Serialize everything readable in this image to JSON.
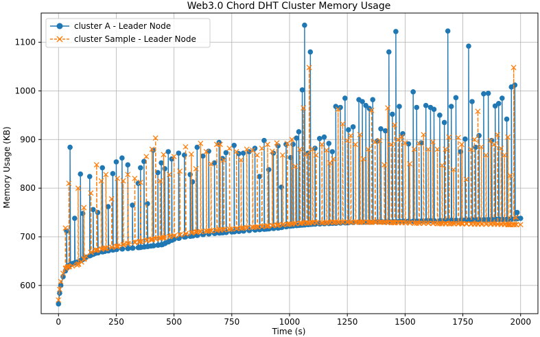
{
  "chart_data": {
    "type": "line",
    "title": "Web3.0 Chord DHT Cluster Memory Usage",
    "xlabel": "Time (s)",
    "ylabel": "Memory Usage (KB)",
    "xlim": [
      -75,
      2075
    ],
    "ylim": [
      542,
      1160
    ],
    "xticks": [
      0,
      250,
      500,
      750,
      1000,
      1250,
      1500,
      1750,
      2000
    ],
    "yticks": [
      600,
      700,
      800,
      900,
      1000,
      1100
    ],
    "grid": true,
    "legend_position": "top-left",
    "series": [
      {
        "name": "cluster A - Leader Node",
        "color": "#1f77b4",
        "marker": "circle",
        "line_style": "solid",
        "base_values": [
          [
            0,
            562
          ],
          [
            5,
            584
          ],
          [
            10,
            600
          ],
          [
            20,
            618
          ],
          [
            30,
            630
          ],
          [
            40,
            640
          ],
          [
            60,
            645
          ],
          [
            80,
            648
          ],
          [
            100,
            652
          ],
          [
            120,
            658
          ],
          [
            140,
            662
          ],
          [
            160,
            666
          ],
          [
            200,
            670
          ],
          [
            250,
            674
          ],
          [
            300,
            676
          ],
          [
            350,
            678
          ],
          [
            400,
            681
          ],
          [
            450,
            684
          ],
          [
            500,
            695
          ],
          [
            550,
            700
          ],
          [
            600,
            703
          ],
          [
            650,
            706
          ],
          [
            700,
            708
          ],
          [
            750,
            710
          ],
          [
            800,
            712
          ],
          [
            850,
            714
          ],
          [
            900,
            716
          ],
          [
            950,
            718
          ],
          [
            1000,
            722
          ],
          [
            1050,
            724
          ],
          [
            1100,
            726
          ],
          [
            1150,
            727
          ],
          [
            1200,
            728
          ],
          [
            1250,
            729
          ],
          [
            1300,
            730
          ],
          [
            1350,
            730
          ],
          [
            1400,
            731
          ],
          [
            1450,
            731
          ],
          [
            1500,
            732
          ],
          [
            1550,
            732
          ],
          [
            1600,
            733
          ],
          [
            1650,
            733
          ],
          [
            1700,
            734
          ],
          [
            1750,
            734
          ],
          [
            1800,
            735
          ],
          [
            1850,
            735
          ],
          [
            1900,
            736
          ],
          [
            1950,
            736
          ],
          [
            2000,
            738
          ]
        ],
        "spikes": [
          [
            35,
            712
          ],
          [
            50,
            884
          ],
          [
            70,
            738
          ],
          [
            95,
            829
          ],
          [
            105,
            748
          ],
          [
            135,
            824
          ],
          [
            150,
            756
          ],
          [
            170,
            750
          ],
          [
            190,
            842
          ],
          [
            215,
            762
          ],
          [
            235,
            830
          ],
          [
            250,
            854
          ],
          [
            275,
            862
          ],
          [
            300,
            848
          ],
          [
            320,
            765
          ],
          [
            345,
            810
          ],
          [
            355,
            842
          ],
          [
            370,
            855
          ],
          [
            385,
            768
          ],
          [
            410,
            878
          ],
          [
            430,
            832
          ],
          [
            445,
            852
          ],
          [
            460,
            840
          ],
          [
            475,
            875
          ],
          [
            490,
            860
          ],
          [
            520,
            872
          ],
          [
            545,
            868
          ],
          [
            570,
            828
          ],
          [
            580,
            813
          ],
          [
            600,
            884
          ],
          [
            625,
            866
          ],
          [
            650,
            876
          ],
          [
            675,
            852
          ],
          [
            695,
            894
          ],
          [
            710,
            861
          ],
          [
            725,
            873
          ],
          [
            760,
            888
          ],
          [
            780,
            871
          ],
          [
            800,
            872
          ],
          [
            825,
            875
          ],
          [
            850,
            882
          ],
          [
            870,
            824
          ],
          [
            890,
            898
          ],
          [
            910,
            838
          ],
          [
            930,
            872
          ],
          [
            950,
            887
          ],
          [
            965,
            802
          ],
          [
            985,
            890
          ],
          [
            1005,
            863
          ],
          [
            1015,
            890
          ],
          [
            1030,
            903
          ],
          [
            1040,
            916
          ],
          [
            1055,
            1002
          ],
          [
            1065,
            1135
          ],
          [
            1080,
            872
          ],
          [
            1090,
            1080
          ],
          [
            1110,
            882
          ],
          [
            1130,
            902
          ],
          [
            1150,
            905
          ],
          [
            1170,
            892
          ],
          [
            1185,
            875
          ],
          [
            1200,
            968
          ],
          [
            1220,
            966
          ],
          [
            1240,
            985
          ],
          [
            1255,
            920
          ],
          [
            1275,
            926
          ],
          [
            1300,
            982
          ],
          [
            1315,
            978
          ],
          [
            1330,
            970
          ],
          [
            1345,
            964
          ],
          [
            1360,
            982
          ],
          [
            1380,
            897
          ],
          [
            1395,
            922
          ],
          [
            1415,
            918
          ],
          [
            1430,
            1080
          ],
          [
            1445,
            952
          ],
          [
            1460,
            1122
          ],
          [
            1475,
            968
          ],
          [
            1490,
            912
          ],
          [
            1515,
            891
          ],
          [
            1535,
            998
          ],
          [
            1550,
            966
          ],
          [
            1570,
            893
          ],
          [
            1590,
            970
          ],
          [
            1610,
            966
          ],
          [
            1625,
            962
          ],
          [
            1650,
            950
          ],
          [
            1670,
            935
          ],
          [
            1685,
            1123
          ],
          [
            1700,
            968
          ],
          [
            1720,
            986
          ],
          [
            1740,
            875
          ],
          [
            1760,
            901
          ],
          [
            1775,
            1092
          ],
          [
            1790,
            978
          ],
          [
            1805,
            884
          ],
          [
            1820,
            908
          ],
          [
            1840,
            994
          ],
          [
            1860,
            995
          ],
          [
            1875,
            898
          ],
          [
            1890,
            969
          ],
          [
            1905,
            974
          ],
          [
            1920,
            985
          ],
          [
            1940,
            942
          ],
          [
            1960,
            1008
          ],
          [
            1975,
            1012
          ],
          [
            1985,
            750
          ]
        ]
      },
      {
        "name": "cluster Sample - Leader Node",
        "color": "#ff7f0e",
        "marker": "x",
        "line_style": "dashed",
        "base_values": [
          [
            0,
            570
          ],
          [
            5,
            592
          ],
          [
            10,
            608
          ],
          [
            20,
            625
          ],
          [
            30,
            635
          ],
          [
            40,
            638
          ],
          [
            60,
            640
          ],
          [
            80,
            642
          ],
          [
            100,
            648
          ],
          [
            120,
            660
          ],
          [
            140,
            668
          ],
          [
            160,
            672
          ],
          [
            200,
            676
          ],
          [
            250,
            680
          ],
          [
            300,
            686
          ],
          [
            350,
            690
          ],
          [
            400,
            694
          ],
          [
            450,
            698
          ],
          [
            500,
            702
          ],
          [
            550,
            706
          ],
          [
            600,
            710
          ],
          [
            650,
            712
          ],
          [
            700,
            714
          ],
          [
            750,
            716
          ],
          [
            800,
            718
          ],
          [
            850,
            720
          ],
          [
            900,
            722
          ],
          [
            950,
            724
          ],
          [
            1000,
            726
          ],
          [
            1050,
            728
          ],
          [
            1100,
            729
          ],
          [
            1150,
            729
          ],
          [
            1200,
            730
          ],
          [
            1250,
            730
          ],
          [
            1300,
            730
          ],
          [
            1350,
            730
          ],
          [
            1400,
            730
          ],
          [
            1450,
            729
          ],
          [
            1500,
            729
          ],
          [
            1550,
            728
          ],
          [
            1600,
            728
          ],
          [
            1650,
            727
          ],
          [
            1700,
            727
          ],
          [
            1750,
            727
          ],
          [
            1800,
            726
          ],
          [
            1850,
            726
          ],
          [
            1900,
            726
          ],
          [
            1950,
            725
          ],
          [
            2000,
            725
          ]
        ],
        "spikes": [
          [
            30,
            718
          ],
          [
            45,
            810
          ],
          [
            85,
            800
          ],
          [
            110,
            760
          ],
          [
            140,
            790
          ],
          [
            165,
            848
          ],
          [
            185,
            815
          ],
          [
            205,
            828
          ],
          [
            230,
            778
          ],
          [
            255,
            820
          ],
          [
            280,
            815
          ],
          [
            300,
            828
          ],
          [
            330,
            820
          ],
          [
            355,
            812
          ],
          [
            380,
            865
          ],
          [
            405,
            880
          ],
          [
            420,
            903
          ],
          [
            440,
            815
          ],
          [
            455,
            869
          ],
          [
            480,
            828
          ],
          [
            500,
            865
          ],
          [
            525,
            835
          ],
          [
            550,
            885
          ],
          [
            575,
            870
          ],
          [
            595,
            840
          ],
          [
            615,
            892
          ],
          [
            640,
            875
          ],
          [
            660,
            850
          ],
          [
            685,
            890
          ],
          [
            700,
            890
          ],
          [
            715,
            858
          ],
          [
            740,
            882
          ],
          [
            770,
            875
          ],
          [
            790,
            858
          ],
          [
            815,
            880
          ],
          [
            840,
            878
          ],
          [
            860,
            868
          ],
          [
            880,
            882
          ],
          [
            905,
            890
          ],
          [
            925,
            876
          ],
          [
            945,
            893
          ],
          [
            970,
            868
          ],
          [
            990,
            892
          ],
          [
            1010,
            900
          ],
          [
            1025,
            845
          ],
          [
            1045,
            880
          ],
          [
            1060,
            965
          ],
          [
            1075,
            870
          ],
          [
            1085,
            1048
          ],
          [
            1100,
            880
          ],
          [
            1115,
            868
          ],
          [
            1140,
            890
          ],
          [
            1160,
            878
          ],
          [
            1175,
            852
          ],
          [
            1190,
            860
          ],
          [
            1210,
            962
          ],
          [
            1230,
            932
          ],
          [
            1250,
            898
          ],
          [
            1265,
            908
          ],
          [
            1285,
            890
          ],
          [
            1305,
            910
          ],
          [
            1320,
            860
          ],
          [
            1340,
            880
          ],
          [
            1355,
            960
          ],
          [
            1370,
            895
          ],
          [
            1390,
            898
          ],
          [
            1410,
            848
          ],
          [
            1425,
            965
          ],
          [
            1440,
            890
          ],
          [
            1455,
            930
          ],
          [
            1470,
            900
          ],
          [
            1485,
            906
          ],
          [
            1500,
            893
          ],
          [
            1520,
            850
          ],
          [
            1540,
            880
          ],
          [
            1560,
            892
          ],
          [
            1580,
            910
          ],
          [
            1600,
            880
          ],
          [
            1620,
            895
          ],
          [
            1640,
            880
          ],
          [
            1660,
            847
          ],
          [
            1675,
            880
          ],
          [
            1690,
            905
          ],
          [
            1710,
            838
          ],
          [
            1730,
            904
          ],
          [
            1745,
            890
          ],
          [
            1765,
            818
          ],
          [
            1785,
            880
          ],
          [
            1800,
            900
          ],
          [
            1815,
            958
          ],
          [
            1830,
            885
          ],
          [
            1850,
            868
          ],
          [
            1870,
            898
          ],
          [
            1885,
            890
          ],
          [
            1900,
            910
          ],
          [
            1915,
            882
          ],
          [
            1930,
            868
          ],
          [
            1945,
            905
          ],
          [
            1955,
            826
          ],
          [
            1970,
            1048
          ],
          [
            1980,
            740
          ]
        ]
      }
    ]
  }
}
